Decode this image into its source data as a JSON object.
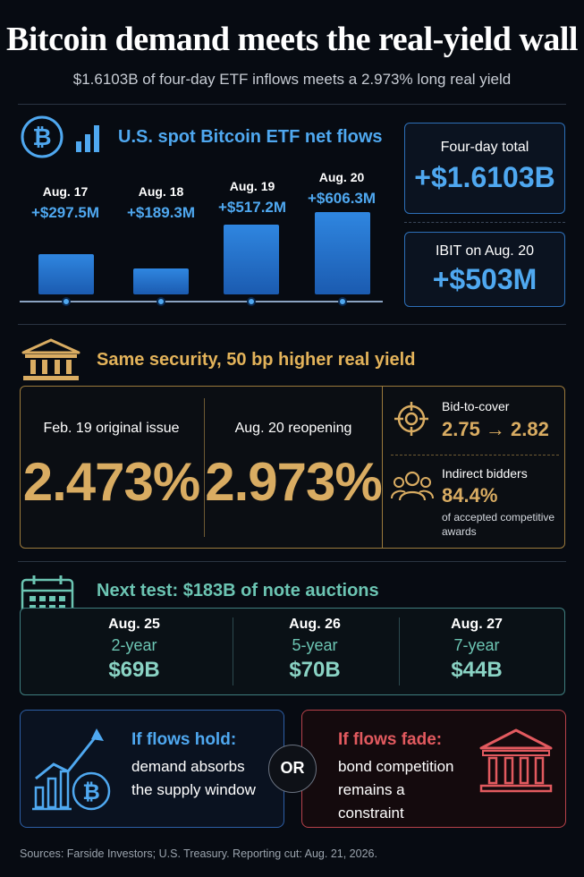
{
  "header": {
    "title": "Bitcoin demand meets the real-yield wall",
    "subtitle": "$1.6103B of four-day ETF inflows meets a 2.973% long real yield"
  },
  "etf": {
    "title": "U.S. spot Bitcoin ETF net flows",
    "days": [
      {
        "date": "Aug. 17",
        "value": "+$297.5M"
      },
      {
        "date": "Aug. 18",
        "value": "+$189.3M"
      },
      {
        "date": "Aug. 19",
        "value": "+$517.2M"
      },
      {
        "date": "Aug. 20",
        "value": "+$606.3M"
      }
    ],
    "flow_values_musd": [
      297.5,
      189.3,
      517.2,
      606.3
    ],
    "total_label": "Four-day total",
    "total_value": "+$1.6103B",
    "ibit_label": "IBIT on Aug. 20",
    "ibit_value": "+$503M",
    "accent_color": "#4fa8f0"
  },
  "treasury": {
    "title": "Same security, 50 bp higher real yield",
    "original_label": "Feb. 19 original issue",
    "original_value": "2.473%",
    "reopen_label": "Aug. 20 reopening",
    "reopen_value": "2.973%",
    "btc_label": "Bid-to-cover",
    "btc_value": "2.75 → 2.82",
    "indirect_label": "Indirect bidders",
    "indirect_value": "84.4%",
    "indirect_note_line1": "of accepted competitive",
    "indirect_note_line2": "awards",
    "accent_color": "#d9ac62"
  },
  "auctions": {
    "title": "Next test: $183B of note auctions",
    "items": [
      {
        "date": "Aug. 25",
        "tenor": "2-year",
        "amount": "$69B"
      },
      {
        "date": "Aug. 26",
        "tenor": "5-year",
        "amount": "$70B"
      },
      {
        "date": "Aug. 27",
        "tenor": "7-year",
        "amount": "$44B"
      }
    ],
    "accent_color": "#6cc5b3"
  },
  "scenarios": {
    "hold_head": "If flows hold:",
    "hold_line1": "demand absorbs",
    "hold_line2": "the supply window",
    "or_label": "OR",
    "fade_head": "If flows fade:",
    "fade_line1": "bond competition",
    "fade_line2": "remains a",
    "fade_line3": "constraint",
    "hold_color": "#4fa8f0",
    "fade_color": "#e25a5f"
  },
  "footer": {
    "sources": "Sources: Farside Investors; U.S. Treasury. Reporting cut: Aug. 21, 2026."
  },
  "icons": [
    "bitcoin-icon",
    "bar-chart-icon",
    "bank-building-icon",
    "target-icon",
    "people-icon",
    "calendar-icon",
    "growth-chart-bitcoin-icon",
    "bank-building-red-icon"
  ]
}
